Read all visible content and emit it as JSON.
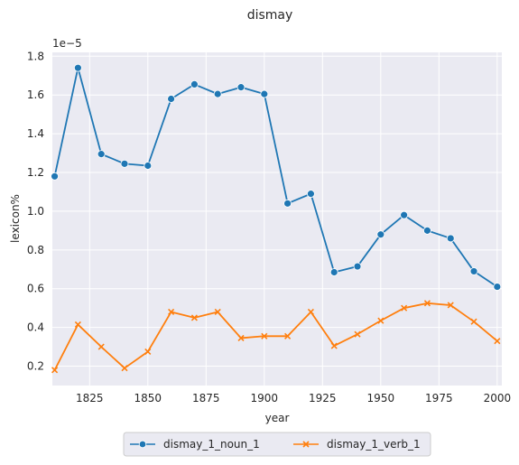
{
  "chart_data": {
    "type": "line",
    "title": "dismay",
    "xlabel": "year",
    "ylabel": "lexicon%",
    "y_offset_label": "1e−5",
    "xlim": [
      1809,
      2002
    ],
    "ylim": [
      0.1,
      1.82
    ],
    "x_ticks": [
      1825,
      1850,
      1875,
      1900,
      1925,
      1950,
      1975,
      2000
    ],
    "y_ticks": [
      0.2,
      0.4,
      0.6,
      0.8,
      1.0,
      1.2,
      1.4,
      1.6,
      1.8
    ],
    "y_tick_labels": [
      "0.2",
      "0.4",
      "0.6",
      "0.8",
      "1.0",
      "1.2",
      "1.4",
      "1.6",
      "1.8"
    ],
    "grid": true,
    "legend_position": "bottom-center, below plot",
    "x": [
      1810,
      1820,
      1830,
      1840,
      1850,
      1860,
      1870,
      1880,
      1890,
      1900,
      1910,
      1920,
      1930,
      1940,
      1950,
      1960,
      1970,
      1980,
      1990,
      2000
    ],
    "series": [
      {
        "name": "dismay_1_noun_1",
        "color": "#1f77b4",
        "marker": "circle",
        "values": [
          1.18,
          1.74,
          1.295,
          1.245,
          1.235,
          1.58,
          1.655,
          1.605,
          1.64,
          1.605,
          1.04,
          1.09,
          0.685,
          0.715,
          0.88,
          0.98,
          0.9,
          0.86,
          0.69,
          0.61
        ]
      },
      {
        "name": "dismay_1_verb_1",
        "color": "#ff7f0e",
        "marker": "x",
        "values": [
          0.18,
          0.415,
          0.3,
          0.19,
          0.275,
          0.48,
          0.45,
          0.48,
          0.345,
          0.355,
          0.355,
          0.48,
          0.305,
          0.365,
          0.435,
          0.5,
          0.525,
          0.515,
          0.43,
          0.33
        ]
      }
    ]
  },
  "colors": {
    "plot_background": "#eaeaf2",
    "grid": "#ffffff",
    "text": "#262626"
  }
}
